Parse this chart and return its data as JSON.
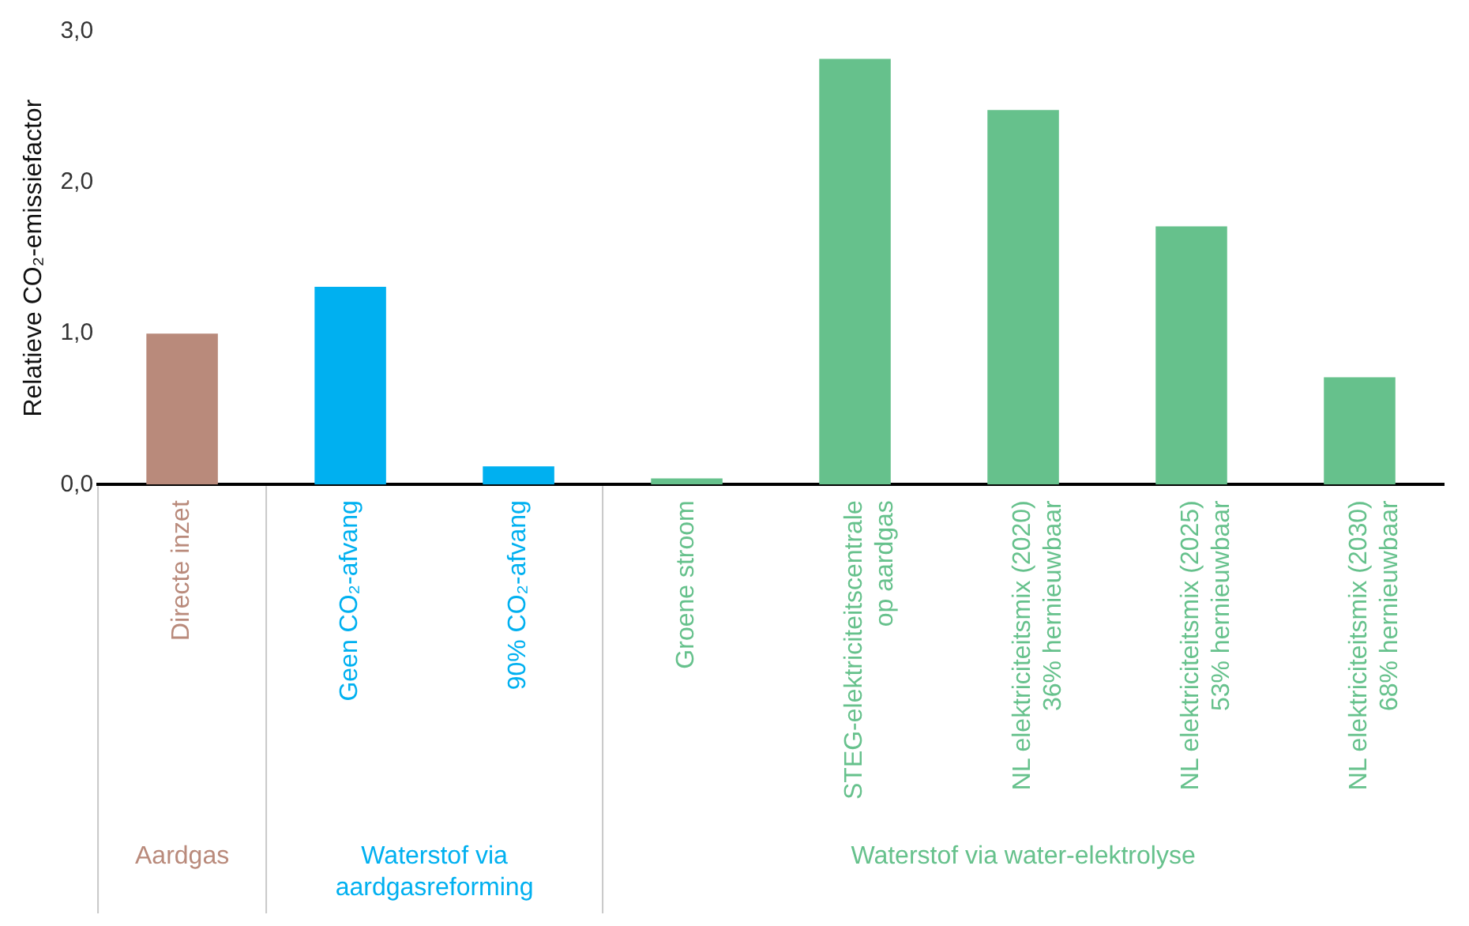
{
  "chart_data": {
    "type": "bar",
    "ylabel": "Relatieve CO₂-emissiefactor",
    "categories": [
      "Directe inzet",
      "Geen CO₂-afvang",
      "90% CO₂-afvang",
      "Groene stroom",
      "STEG-elektriciteitscentrale\nop aardgas",
      "NL elektriciteitsmix (2020)\n36% hernieuwbaar",
      "NL elektriciteitsmix (2025)\n53% hernieuwbaar",
      "NL elektriciteitsmix (2030)\n68% hernieuwbaar"
    ],
    "series": [
      {
        "name": "Aardgas",
        "color": "#b98a7b",
        "values": [
          1.0,
          null,
          null,
          null,
          null,
          null,
          null,
          null
        ]
      },
      {
        "name": "Waterstof via\naardgasreforming",
        "color": "#00b0f0",
        "values": [
          null,
          1.31,
          0.12,
          null,
          null,
          null,
          null,
          null
        ]
      },
      {
        "name": "Waterstof via water-elektrolyse",
        "color": "#66c18c",
        "values": [
          null,
          null,
          null,
          0.04,
          2.82,
          2.48,
          1.71,
          0.71
        ]
      }
    ],
    "ylim": [
      0,
      3
    ],
    "yticks": [
      {
        "value": 0,
        "label": "0,0"
      },
      {
        "value": 1,
        "label": "1,0"
      },
      {
        "value": 2,
        "label": "2,0"
      },
      {
        "value": 3,
        "label": "3,0"
      }
    ],
    "grid": false,
    "legend": false
  }
}
